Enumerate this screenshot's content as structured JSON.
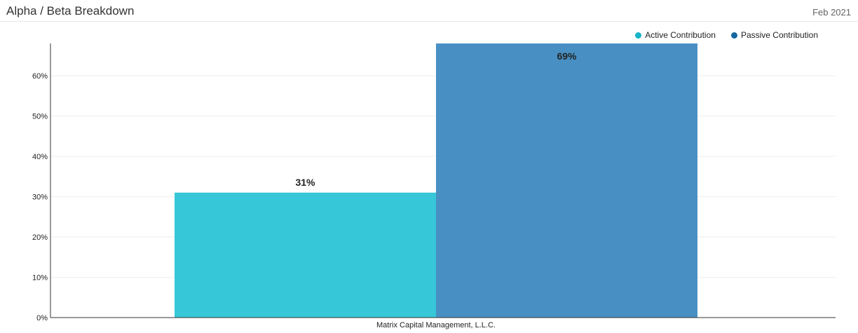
{
  "header": {
    "title": "Alpha / Beta Breakdown",
    "date": "Feb 2021"
  },
  "chart_data": {
    "type": "bar",
    "categories": [
      "Matrix Capital Management, L.L.C."
    ],
    "series": [
      {
        "name": "Active Contribution",
        "values": [
          31
        ],
        "label": "31%",
        "color": "#36c8d8"
      },
      {
        "name": "Passive Contribution",
        "values": [
          69
        ],
        "label": "69%",
        "color": "#4890c4"
      }
    ],
    "ylim": [
      0,
      68
    ],
    "yticks": [
      0,
      10,
      20,
      30,
      40,
      50,
      60
    ],
    "ytick_labels": [
      "0%",
      "10%",
      "20%",
      "30%",
      "40%",
      "50%",
      "60%"
    ],
    "grid": true,
    "legend": "top-right"
  },
  "colors": {
    "active_legend": "#17b3c7",
    "passive_legend": "#14679e"
  }
}
